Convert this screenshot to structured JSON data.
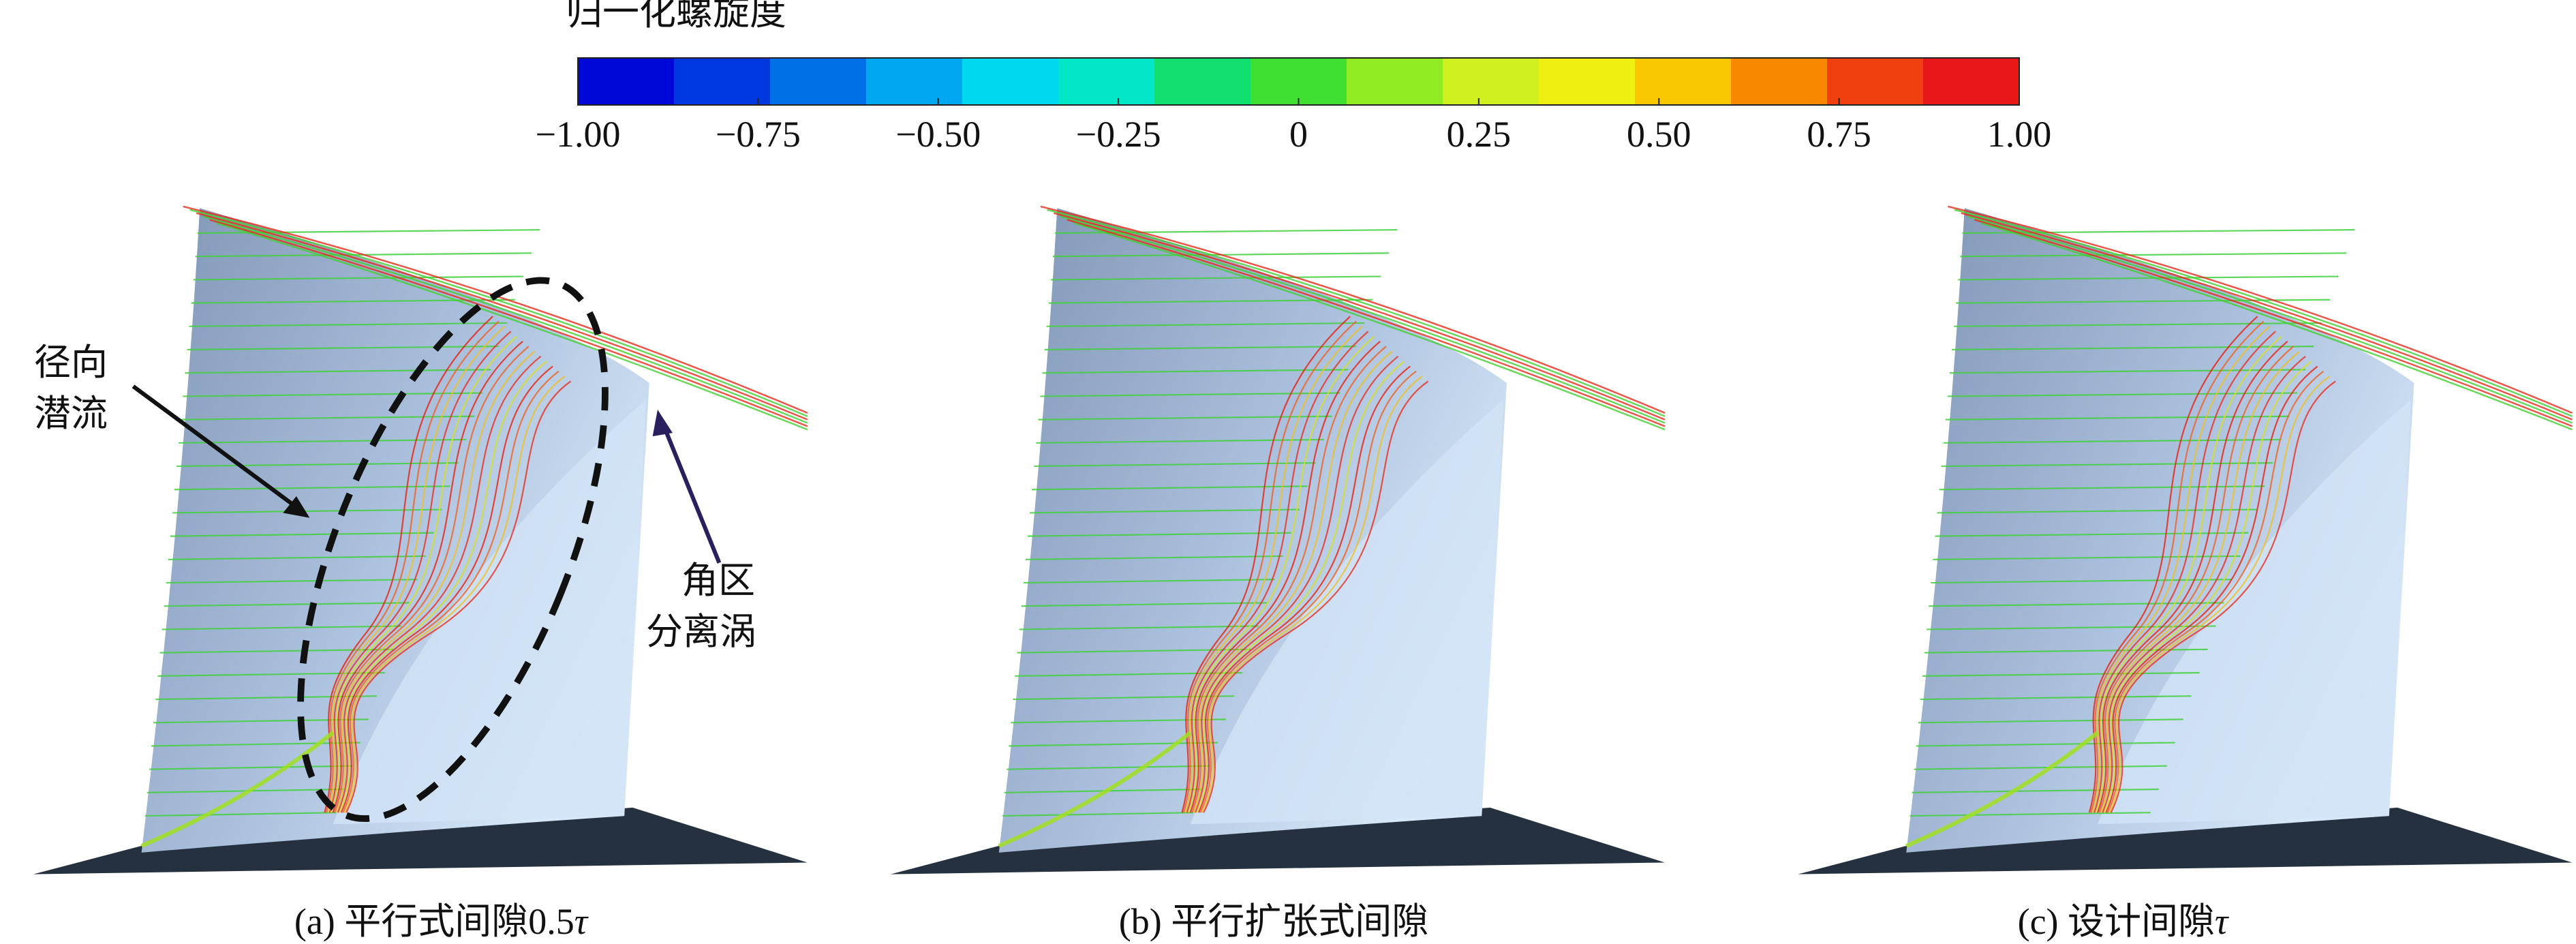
{
  "colorbar": {
    "title": "归一化螺旋度",
    "range": [
      -1,
      1
    ],
    "ticks": [
      {
        "value": -1,
        "label": "−1.00"
      },
      {
        "value": -0.75,
        "label": "−0.75"
      },
      {
        "value": -0.5,
        "label": "−0.50"
      },
      {
        "value": -0.25,
        "label": "−0.25"
      },
      0,
      0.25,
      {
        "value": 0.5,
        "label": "0.50"
      },
      {
        "value": 0.75,
        "label": "0.75"
      },
      {
        "value": 1,
        "label": "1.00"
      }
    ],
    "colors": [
      "#0008d8",
      "#0038e0",
      "#0070e8",
      "#00a8f0",
      "#00d8f0",
      "#00e8c8",
      "#10e070",
      "#40e030",
      "#90ec20",
      "#d0f020",
      "#f0f010",
      "#f8c800",
      "#f88800",
      "#f04010",
      "#e81818"
    ]
  },
  "annotations": [
    {
      "lines": [
        "径向",
        "潜流"
      ]
    },
    {
      "lines": [
        "角区",
        "分离涡"
      ]
    }
  ],
  "panels": [
    {
      "caption": "(a) 平行式间隙0.5",
      "symbol": "τ"
    },
    {
      "caption": "(b) 平行扩张式间隙"
    },
    {
      "caption": "(c) 设计间隙",
      "symbol": "τ"
    }
  ]
}
